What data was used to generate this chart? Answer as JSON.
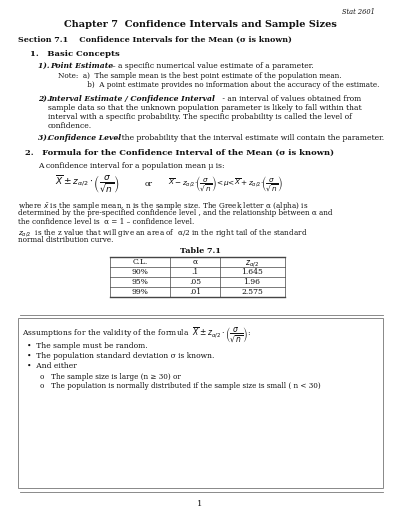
{
  "page_header_right": "Stat 2601",
  "title": "Chapter 7  Confidence Intervals and Sample Sizes",
  "section_title": "Section 7.1    Confidence Intervals for the Mean (σ is known)",
  "heading1": "1.   Basic Concepts",
  "item1_label": "1).  ",
  "item1_bold": "Point Estimate",
  "item1_text": "  – a specific numerical value estimate of a parameter.",
  "note_a": "Note:  a)  The sample mean is the best point estimate of the population mean.",
  "note_b": "             b)  A point estimate provides no information about the accuracy of the estimate.",
  "item2_label": "2). ",
  "item2_bold": "Interval Estimate / Confidence Interval",
  "item2_text": " - an interval of values obtained from",
  "item2_line2": "sample data so that the unknown population parameter is likely to fall within that",
  "item2_line3": "interval with a specific probability. The specific probability is called the level of",
  "item2_line4": "confidence.",
  "item3_label": "3). ",
  "item3_bold": "Confidence Level",
  "item3_text": " – the probability that the interval estimate will contain the parameter.",
  "heading2": "2.   Formula for the Confidence Interval of the Mean (σ is known)",
  "formula_intro": "A confidence interval for a population mean μ is:",
  "where_line1": "where $\\bar{x}$ is the sample mean, n is the sample size. The Greek letter α (alpha) is",
  "where_line2": "determined by the pre-specified confidence level , and the relationship between α and",
  "where_line3": "the confidence level is  α = 1 – confidence level.",
  "where_line4": "$z_{\\alpha/2}$  is the z value that will give an area of  α/2 in the right tail of the standard",
  "where_line5": "normal distribution curve.",
  "table_title": "Table 7.1",
  "table_headers": [
    "C.L.",
    "α",
    "zα/2"
  ],
  "table_rows": [
    [
      "90%",
      ".1",
      "1.645"
    ],
    [
      "95%",
      ".05",
      "1.96"
    ],
    [
      "99%",
      ".01",
      "2.575"
    ]
  ],
  "assumptions_line": "Assumptions for the validity of the formula",
  "bullet1": "The sample must be random.",
  "bullet2": "The population standard deviation σ is known.",
  "bullet3": "And either",
  "sub1": "The sample size is large (n ≥ 30) or",
  "sub2": "The population is normally distributed if the sample size is small ( n < 30)",
  "page_number": "1",
  "bg_color": "#ffffff",
  "text_color": "#111111",
  "line_color": "#777777"
}
